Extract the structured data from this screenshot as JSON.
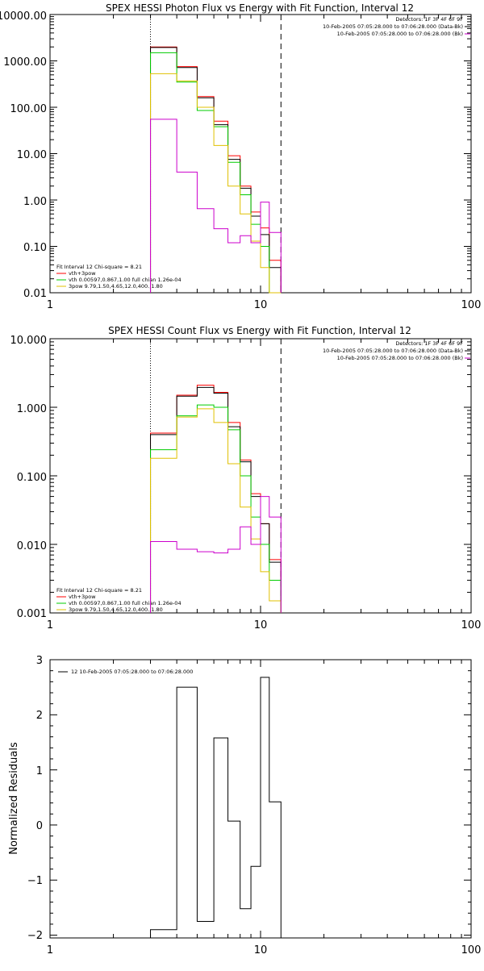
{
  "chart_data": [
    {
      "type": "line",
      "title": "SPEX HESSI Photon Flux vs Energy with Fit Function, Interval 12",
      "xscale": "log",
      "yscale": "log",
      "xlim": [
        1,
        100
      ],
      "ylim": [
        0.01,
        10000
      ],
      "xticks": [
        "1",
        "10",
        "100"
      ],
      "yticks": [
        "10000.00",
        "1000.00",
        "100.00",
        "10.00",
        "1.00",
        "0.10",
        "0.01"
      ],
      "markers": {
        "dotted_line_x": 3,
        "dashed_line_x": 12.5
      },
      "legend_top_right": [
        {
          "text": "Detectors: 1F 3F 4F 6F 9F",
          "color": "#000000"
        },
        {
          "text": "10-Feb-2005 07:05:28.000 to 07:06:28.000 (Data-Bk)",
          "color": "#000000"
        },
        {
          "text": "10-Feb-2005 07:05:28.000 to 07:06:28.000 (Bk)",
          "color": "#cc00cc"
        }
      ],
      "legend_bottom_left": [
        {
          "text": "Fit Interval 12    Chi-square = 8.21",
          "color": ""
        },
        {
          "text": "vth+3pow",
          "color": "#ff0000"
        },
        {
          "text": "vth 0.00597,0.867,1.00   full chian 1.26e-04",
          "color": "#00cc00"
        },
        {
          "text": "3pow 9.79,1.50,4.65,12.0,400.,1.80",
          "color": "#e0c000"
        }
      ],
      "bin_edges": [
        3,
        4,
        5,
        6,
        7,
        8,
        9,
        10,
        11,
        12.5
      ],
      "series": [
        {
          "name": "vth+3pow",
          "color": "#ff0000",
          "values": [
            2000,
            750,
            170,
            50,
            9,
            2,
            0.55,
            0.25,
            0.05
          ]
        },
        {
          "name": "",
          "color": "#000000",
          "values": [
            1950,
            720,
            160,
            42,
            7.5,
            1.8,
            0.45,
            0.18,
            0.035
          ]
        },
        {
          "name": "vth 0.00597,0.867,1.00   full chian 1.26e-04",
          "color": "#00cc00",
          "values": [
            1500,
            350,
            85,
            38,
            6.5,
            1.3,
            0.3,
            0.1,
            0.01
          ]
        },
        {
          "name": "3pow 9.79,1.50,4.65,12.0,400.,1.80",
          "color": "#e0c000",
          "values": [
            530,
            370,
            100,
            15,
            2,
            0.5,
            0.13,
            0.035,
            0.006
          ]
        },
        {
          "name": "",
          "color": "#cc00cc",
          "values": [
            55,
            4,
            0.65,
            0.24,
            0.12,
            0.17,
            0.12,
            0.9,
            0.2
          ]
        }
      ]
    },
    {
      "type": "line",
      "title": "SPEX HESSI Count Flux vs Energy with Fit Function, Interval 12",
      "xscale": "log",
      "yscale": "log",
      "xlim": [
        1,
        100
      ],
      "ylim": [
        0.001,
        10
      ],
      "xticks": [
        "1",
        "10",
        "100"
      ],
      "yticks": [
        "10.000",
        "1.000",
        "0.100",
        "0.010",
        "0.001"
      ],
      "markers": {
        "dotted_line_x": 3,
        "dashed_line_x": 12.5
      },
      "legend_top_right": [
        {
          "text": "Detectors: 1F 3F 4F 6F 9F",
          "color": "#000000"
        },
        {
          "text": "10-Feb-2005 07:05:28.000 to 07:06:28.000 (Data-Bk)",
          "color": "#000000"
        },
        {
          "text": "10-Feb-2005 07:05:28.000 to 07:06:28.000 (Bk)",
          "color": "#cc00cc"
        }
      ],
      "legend_bottom_left": [
        {
          "text": "Fit Interval 12    Chi-square = 8.21",
          "color": ""
        },
        {
          "text": "vth+3pow",
          "color": "#ff0000"
        },
        {
          "text": "vth 0.00597,0.867,1.00   full chian 1.26e-04",
          "color": "#00cc00"
        },
        {
          "text": "3pow 9.79,1.50,4.65,12.0,400.,1.80",
          "color": "#e0c000"
        }
      ],
      "bin_edges": [
        3,
        4,
        5,
        6,
        7,
        8,
        9,
        10,
        11,
        12.5
      ],
      "series": [
        {
          "name": "vth+3pow",
          "color": "#ff0000",
          "values": [
            0.42,
            1.5,
            2.1,
            1.65,
            0.6,
            0.17,
            0.055,
            0.02,
            0.006
          ]
        },
        {
          "name": "",
          "color": "#000000",
          "values": [
            0.4,
            1.45,
            1.95,
            1.6,
            0.52,
            0.16,
            0.05,
            0.02,
            0.0055
          ]
        },
        {
          "name": "vth 0.00597,0.867,1.00   full chian 1.26e-04",
          "color": "#00cc00",
          "values": [
            0.24,
            0.75,
            1.08,
            1.0,
            0.47,
            0.1,
            0.025,
            0.01,
            0.003
          ]
        },
        {
          "name": "3pow 9.79,1.50,4.65,12.0,400.,1.80",
          "color": "#e0c000",
          "values": [
            0.18,
            0.72,
            0.95,
            0.6,
            0.15,
            0.035,
            0.012,
            0.004,
            0.0015
          ]
        },
        {
          "name": "",
          "color": "#cc00cc",
          "values": [
            0.011,
            0.0085,
            0.0078,
            0.0075,
            0.0085,
            0.018,
            0.01,
            0.05,
            0.025
          ]
        }
      ]
    },
    {
      "type": "line",
      "title": "",
      "xscale": "log",
      "yscale": "linear",
      "xlim": [
        1,
        100
      ],
      "ylim": [
        -2.05,
        3
      ],
      "xticks": [
        "1",
        "10",
        "100"
      ],
      "yticks": [
        "3",
        "2",
        "1",
        "0",
        "−1",
        "−2"
      ],
      "ylabel": "Normalized Residuals",
      "legend": "12  10-Feb-2005 07:05:28.000 to 07:06:28.000",
      "bin_edges": [
        3,
        4,
        5,
        6,
        7,
        8,
        9,
        10,
        11,
        12.5
      ],
      "series": [
        {
          "name": "",
          "color": "#000000",
          "values": [
            -1.9,
            2.5,
            -1.75,
            1.58,
            0.07,
            -1.52,
            -0.75,
            2.68,
            0.42
          ]
        }
      ]
    }
  ]
}
